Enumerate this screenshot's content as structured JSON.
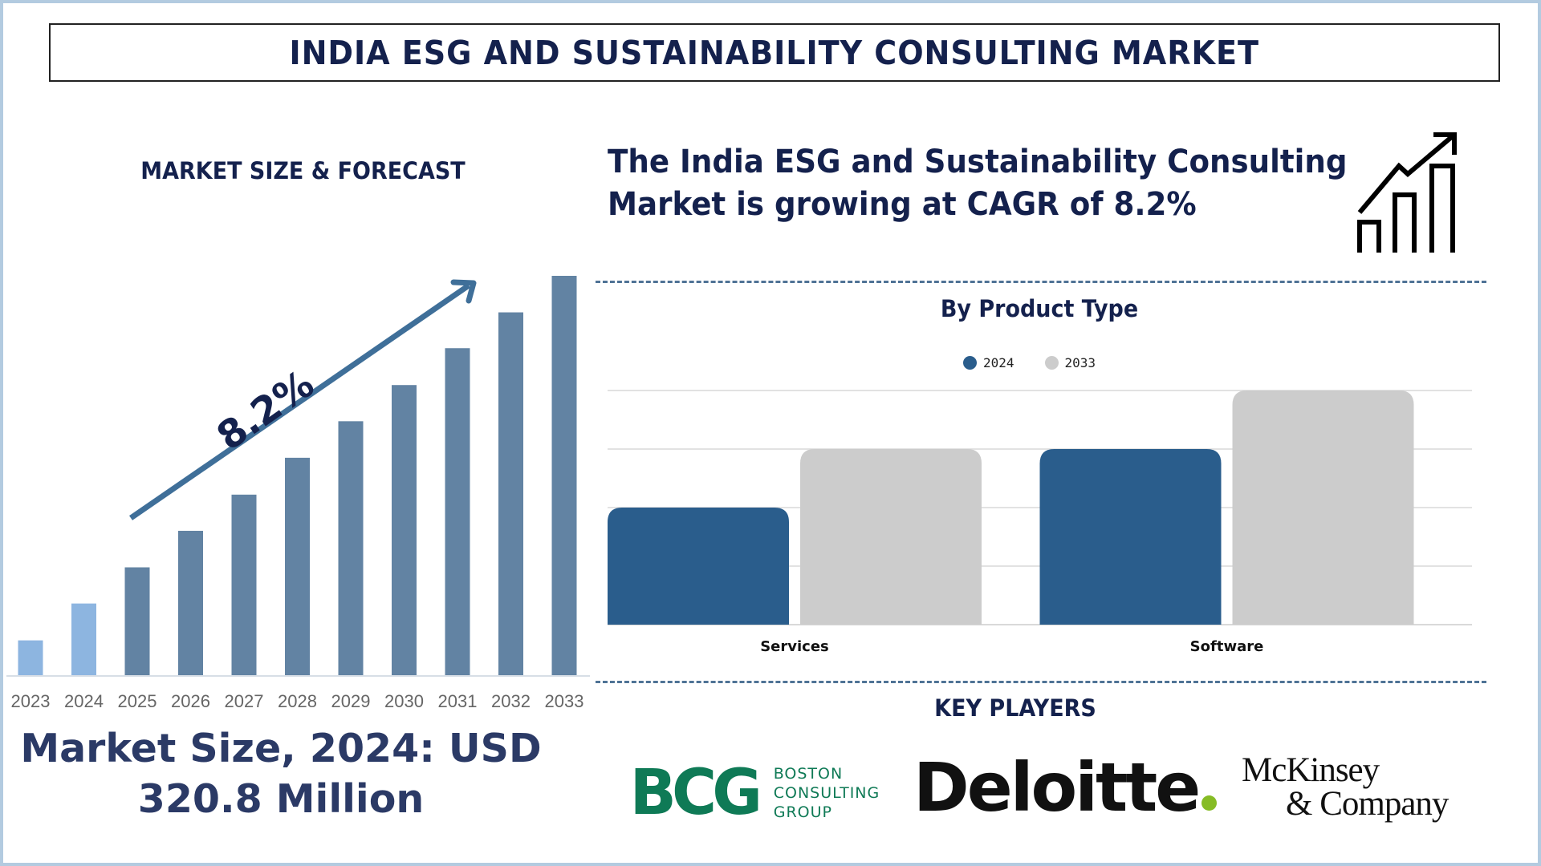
{
  "title": "INDIA ESG AND SUSTAINABILITY CONSULTING MARKET",
  "left_panel": {
    "heading": "MARKET SIZE & FORECAST",
    "cagr_label": "8.2%",
    "market_size_line1": "Market Size, 2024: USD",
    "market_size_line2": "320.8 Million"
  },
  "headline": {
    "line1": "The India ESG and Sustainability Consulting",
    "line2": "Market is growing at CAGR of 8.2%",
    "icon": "growth-chart-icon"
  },
  "product_section": {
    "heading": "By Product Type"
  },
  "key_players": {
    "heading": "KEY PLAYERS",
    "logos": [
      {
        "name": "Boston Consulting Group",
        "mark": "BCG",
        "words": [
          "BOSTON",
          "CONSULTING",
          "GROUP"
        ]
      },
      {
        "name": "Deloitte",
        "mark": "Deloitte"
      },
      {
        "name": "McKinsey & Company",
        "line1": "McKinsey",
        "line2": "& Company"
      }
    ]
  },
  "colors": {
    "title_navy": "#14214d",
    "historical_bar": "#8db5e0",
    "forecast_bar": "#6283a3",
    "arrow": "#3f6f99",
    "series_2024": "#2a5d8c",
    "series_2033": "#cccccc",
    "bcg_green": "#0f7a56",
    "deloitte_green": "#86bc25",
    "frame": "#b3cbe0"
  },
  "chart_data": [
    {
      "type": "bar",
      "title": "MARKET SIZE & FORECAST",
      "categories": [
        "2023",
        "2024",
        "2025",
        "2026",
        "2027",
        "2028",
        "2029",
        "2030",
        "2031",
        "2032",
        "2033"
      ],
      "values": [
        1.0,
        2.06,
        3.1,
        4.15,
        5.19,
        6.25,
        7.3,
        8.34,
        9.4,
        10.43,
        11.48
      ],
      "value_note": "relative bar heights (no axis scale shown)",
      "historical": [
        "2023",
        "2024"
      ],
      "annotation": "8.2%",
      "xlabel": "",
      "ylabel": "",
      "grid": false
    },
    {
      "type": "bar",
      "title": "By Product Type",
      "categories": [
        "Services",
        "Software"
      ],
      "series": [
        {
          "name": "2024",
          "values": [
            2,
            3
          ]
        },
        {
          "name": "2033",
          "values": [
            3,
            4
          ]
        }
      ],
      "ylim": [
        0,
        4
      ],
      "value_note": "relative units read from gridlines (no axis labels shown)",
      "legend": "top-center",
      "grid": true
    }
  ]
}
